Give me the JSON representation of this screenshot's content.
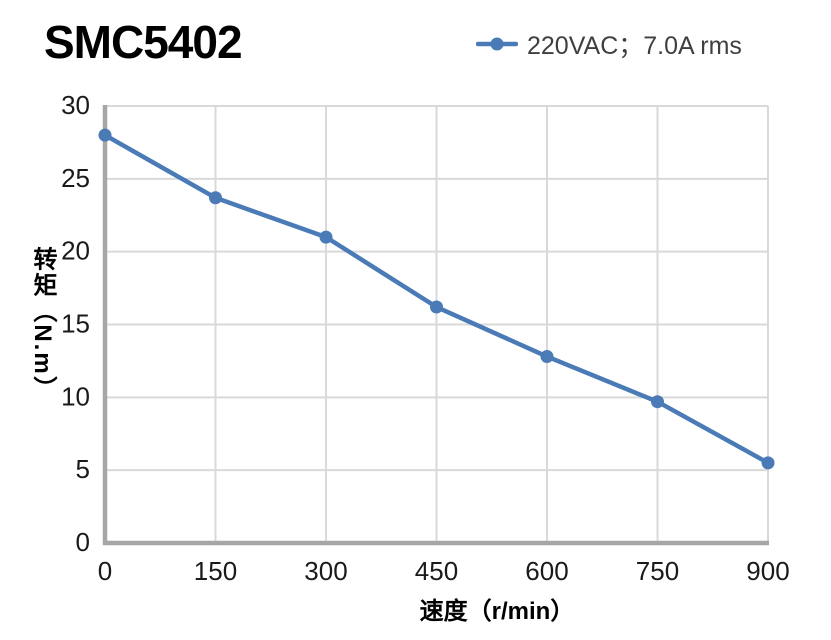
{
  "colors": {
    "line": "#4A7BB7",
    "grid": "#D9D9D9",
    "axis": "#A6A6A6",
    "title_text": "#000000",
    "tick_text": "#1A1A1A",
    "legend_text": "#3F3F3F"
  },
  "chart_data": {
    "type": "line",
    "title": "SMC5402",
    "x": [
      0,
      150,
      300,
      450,
      600,
      750,
      900
    ],
    "series": [
      {
        "name": "220VAC；7.0A rms",
        "values": [
          28.0,
          23.7,
          21.0,
          16.2,
          12.8,
          9.7,
          5.5
        ]
      }
    ],
    "xlabel": "速度（r/min）",
    "ylabel": "转矩（N.m）",
    "xlim": [
      0,
      900
    ],
    "ylim": [
      0,
      30
    ],
    "x_ticks": [
      0,
      150,
      300,
      450,
      600,
      750,
      900
    ],
    "y_ticks": [
      0,
      5,
      10,
      15,
      20,
      25,
      30
    ],
    "grid": true,
    "legend_position": "top-right",
    "marker": "circle"
  }
}
